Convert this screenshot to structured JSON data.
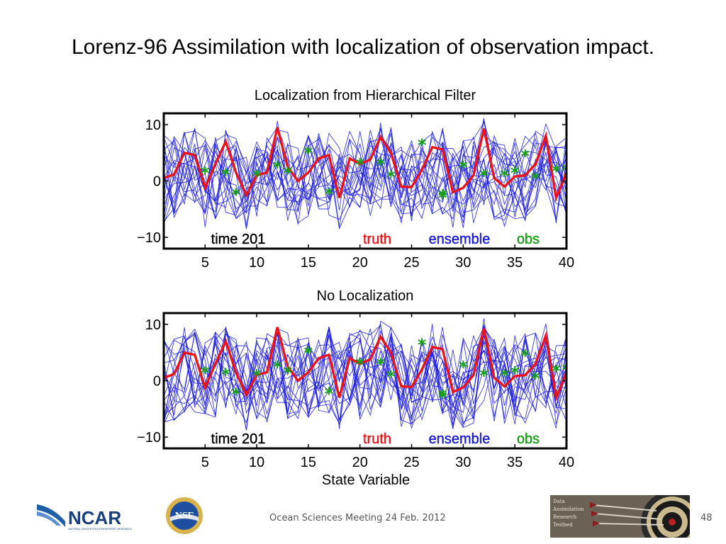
{
  "slide": {
    "title": "Lorenz-96 Assimilation with localization of observation impact.",
    "footer": "Ocean Sciences Meeting 24 Feb. 2012",
    "page_number": "48"
  },
  "logos": {
    "ncar": "NCAR",
    "ncar_subtitle": "NATIONAL CENTER FOR ATMOSPHERIC RESEARCH",
    "nsf": "NSF",
    "dart_lines": [
      "Data",
      "Assimilation",
      "Research",
      "Testbed"
    ]
  },
  "colors": {
    "truth": "#e8141a",
    "ensemble": "#1a1adc",
    "obs": "#16a016",
    "label_time": "#000000"
  },
  "chart_data": [
    {
      "type": "line",
      "title": "Localization from Hierarchical Filter",
      "xlabel": "",
      "ylabel": "",
      "xlim": [
        1,
        40
      ],
      "ylim": [
        -12,
        12
      ],
      "xticks": [
        5,
        10,
        15,
        20,
        25,
        30,
        35,
        40
      ],
      "yticks": [
        10,
        0,
        -10
      ],
      "ytick_labels": [
        "10",
        "0",
        "−10"
      ],
      "legend": {
        "time": "time 201",
        "truth": "truth",
        "ensemble": "ensemble",
        "obs": "obs"
      },
      "ensemble_members": 20,
      "series": [
        {
          "name": "truth",
          "x": [
            1,
            2,
            3,
            4,
            5,
            6,
            7,
            8,
            9,
            10,
            11,
            12,
            13,
            14,
            15,
            16,
            17,
            18,
            19,
            20,
            21,
            22,
            23,
            24,
            25,
            26,
            27,
            28,
            29,
            30,
            31,
            32,
            33,
            34,
            35,
            36,
            37,
            38,
            39,
            40
          ],
          "values": [
            0.5,
            1.2,
            5.0,
            4.6,
            -1.2,
            3.0,
            7.0,
            1.5,
            -2.5,
            1.0,
            1.5,
            9.5,
            2.5,
            0.0,
            1.5,
            4.0,
            4.6,
            -3.0,
            4.0,
            3.0,
            3.8,
            7.8,
            5.0,
            -1.0,
            -1.1,
            2.0,
            6.0,
            5.6,
            -2.0,
            -1.2,
            1.0,
            9.3,
            0.5,
            -1.0,
            0.8,
            1.0,
            3.0,
            8.0,
            -3.0,
            1.5
          ]
        },
        {
          "name": "obs",
          "x": [
            5,
            7,
            8,
            10,
            12,
            13,
            15,
            17,
            20,
            22,
            23,
            26,
            28,
            28,
            30,
            32,
            34,
            35,
            36,
            37,
            39,
            40
          ],
          "values": [
            1.5,
            1.2,
            -2.3,
            1.0,
            2.5,
            1.5,
            5.0,
            -2.2,
            3.0,
            3.0,
            0.8,
            6.5,
            -2.5,
            -2.9,
            2.5,
            1.0,
            1.0,
            1.5,
            4.5,
            0.5,
            1.8,
            2.0
          ]
        }
      ]
    },
    {
      "type": "line",
      "title": "No Localization",
      "xlabel": "State Variable",
      "ylabel": "",
      "xlim": [
        1,
        40
      ],
      "ylim": [
        -12,
        12
      ],
      "xticks": [
        5,
        10,
        15,
        20,
        25,
        30,
        35,
        40
      ],
      "yticks": [
        10,
        0,
        -10
      ],
      "ytick_labels": [
        "10",
        "0",
        "−10"
      ],
      "legend": {
        "time": "time 201",
        "truth": "truth",
        "ensemble": "ensemble",
        "obs": "obs"
      },
      "ensemble_members": 20,
      "series": [
        {
          "name": "truth",
          "x": [
            1,
            2,
            3,
            4,
            5,
            6,
            7,
            8,
            9,
            10,
            11,
            12,
            13,
            14,
            15,
            16,
            17,
            18,
            19,
            20,
            21,
            22,
            23,
            24,
            25,
            26,
            27,
            28,
            29,
            30,
            31,
            32,
            33,
            34,
            35,
            36,
            37,
            38,
            39,
            40
          ],
          "values": [
            0.5,
            1.2,
            5.0,
            4.6,
            -1.2,
            3.0,
            7.0,
            1.5,
            -2.5,
            1.0,
            1.5,
            9.5,
            2.5,
            0.0,
            1.5,
            4.0,
            4.6,
            -3.0,
            4.0,
            3.0,
            3.8,
            7.8,
            5.0,
            -1.0,
            -1.1,
            2.0,
            6.0,
            5.6,
            -2.0,
            -1.2,
            1.0,
            9.3,
            0.5,
            -1.0,
            0.8,
            1.0,
            3.0,
            8.0,
            -3.0,
            1.5
          ]
        },
        {
          "name": "obs",
          "x": [
            5,
            7,
            8,
            10,
            12,
            13,
            15,
            17,
            20,
            22,
            23,
            26,
            28,
            28,
            30,
            32,
            34,
            35,
            36,
            37,
            39,
            40
          ],
          "values": [
            1.5,
            1.2,
            -2.3,
            1.0,
            2.5,
            1.5,
            5.0,
            -2.2,
            3.0,
            3.0,
            0.8,
            6.5,
            -2.5,
            -2.9,
            2.5,
            1.0,
            1.0,
            1.5,
            4.5,
            0.5,
            1.8,
            2.0
          ]
        }
      ]
    }
  ]
}
